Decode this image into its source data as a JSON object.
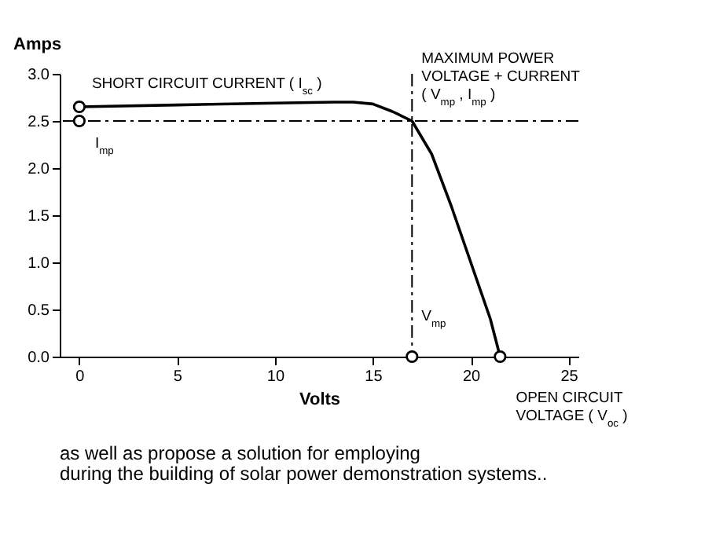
{
  "chart_data": {
    "type": "line",
    "xlabel": "Volts",
    "ylabel": "Amps",
    "xlim": [
      -1,
      25.5
    ],
    "ylim": [
      0,
      3.0
    ],
    "xticks": [
      0,
      5,
      10,
      15,
      20,
      25
    ],
    "yticks": [
      {
        "value": 0,
        "label": "0.0"
      },
      {
        "value": 0.5,
        "label": "0.5"
      },
      {
        "value": 1,
        "label": "1.0"
      },
      {
        "value": 1.5,
        "label": "1.5"
      },
      {
        "value": 2,
        "label": "2.0"
      },
      {
        "value": 2.5,
        "label": "2.5"
      },
      {
        "value": 3,
        "label": "3.0"
      }
    ],
    "grid": false,
    "series": [
      {
        "type": "line",
        "color": "#000000",
        "marker": "none",
        "x": [
          0,
          5,
          10,
          13,
          14,
          15,
          16,
          17,
          18,
          19,
          20,
          21,
          21.5
        ],
        "values": [
          2.65,
          2.67,
          2.69,
          2.7,
          2.7,
          2.68,
          2.6,
          2.5,
          2.15,
          1.6,
          1.0,
          0.4,
          0
        ]
      },
      {
        "type": "scatter",
        "color": "#000000",
        "marker": "circle",
        "x": [
          0,
          0,
          17,
          21.5
        ],
        "values": [
          2.65,
          2.5,
          0,
          0
        ]
      }
    ],
    "ref_lines": [
      {
        "axis": "y",
        "value": 2.5,
        "label": null,
        "line_style": "dashed"
      },
      {
        "axis": "x",
        "value": 17,
        "label": null,
        "line_style": "dashed"
      }
    ],
    "annotations": [
      {
        "text": "SHORT CIRCUIT CURRENT ( I$_{sc}$ )",
        "x": 0,
        "y": 2.65
      },
      {
        "text": "I$_{mp}$",
        "x": 0,
        "y": 2.5
      },
      {
        "text": "MAXIMUM POWER\nVOLTAGE + CURRENT\n( V$_{mp}$ , I$_{mp}$ )",
        "x": 17,
        "y": 2.5
      },
      {
        "text": "V$_{mp}$",
        "x": 17,
        "y": 0
      },
      {
        "text": "OPEN CIRCUIT\nVOLTAGE ( V$_{oc}$ )",
        "x": 21.5,
        "y": 0
      },
      "as well as propose a solution for employing",
      "during the building of solar power demonstration systems.."
    ]
  }
}
